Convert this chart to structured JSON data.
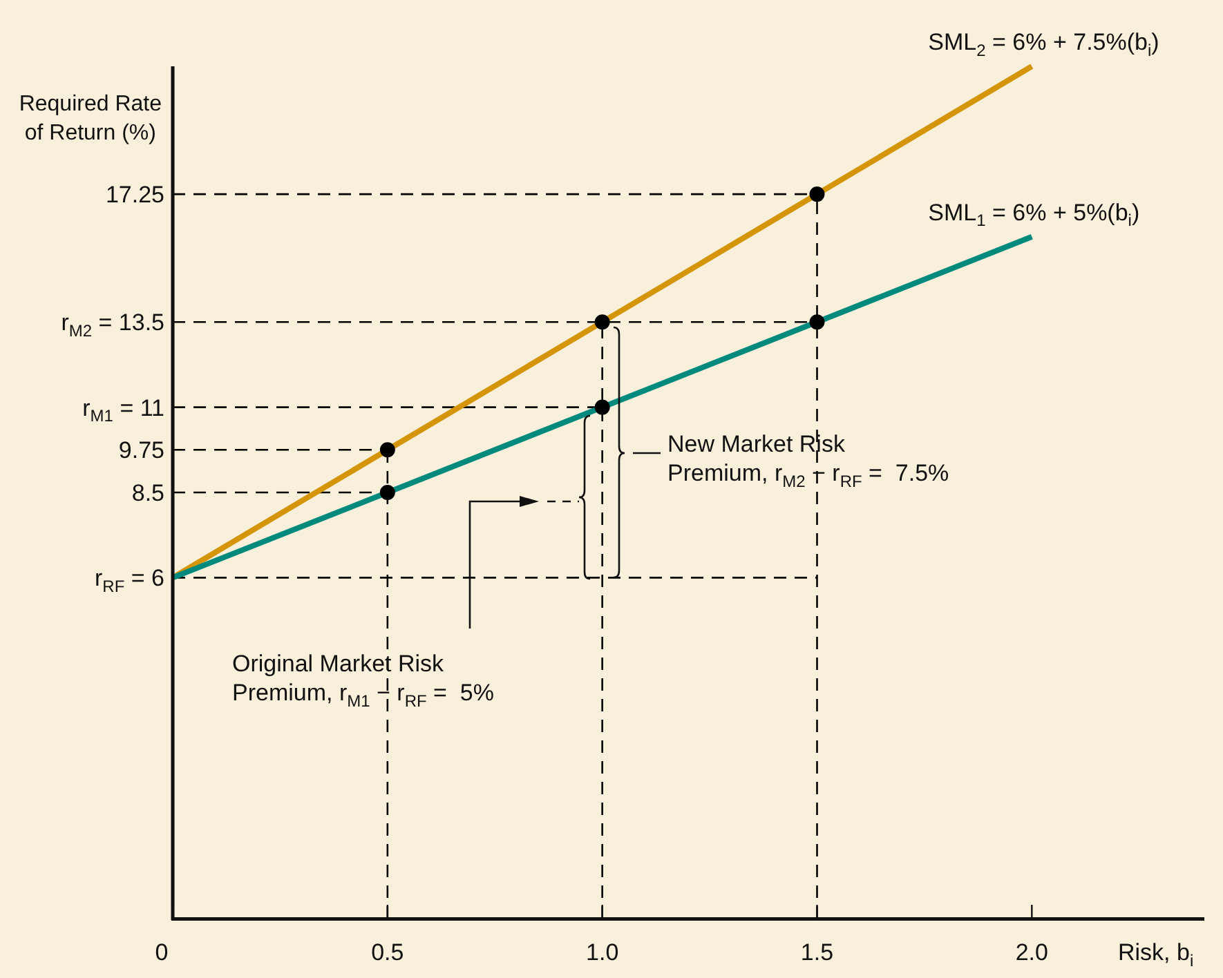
{
  "chart_data": {
    "type": "line",
    "xlabel": "Risk, b$_{i}$",
    "ylabel": "Required Rate\nof Return (%)",
    "xlim": [
      0,
      2.4
    ],
    "ylim": [
      -4,
      21
    ],
    "xticks": [
      0,
      0.5,
      {
        "value": 1,
        "label": "1.0"
      },
      1.5,
      {
        "value": 2,
        "label": "2.0"
      }
    ],
    "yticks": [
      {
        "value": 6,
        "label": "r$_{RF}$ = 6"
      },
      8.5,
      9.75,
      {
        "value": 11,
        "label": "r$_{M1}$ = 11"
      },
      {
        "value": 13.5,
        "label": "r$_{M2}$ = 13.5"
      },
      17.25
    ],
    "series": [
      {
        "name": "SML$_{1}$ = 6% + 5%(b$_{i}$)",
        "color": "#008a7e",
        "x": [
          0,
          2
        ],
        "values": [
          6,
          16
        ],
        "marker": "none"
      },
      {
        "name": "SML$_{2}$ = 6% + 7.5%(b$_{i}$)",
        "color": "#d4950a",
        "x": [
          0,
          2
        ],
        "values": [
          6,
          21
        ],
        "marker": "none"
      },
      {
        "type": "scatter",
        "color": "#000000",
        "x": [
          0.5,
          0.5,
          1,
          1,
          1.5,
          1.5
        ],
        "values": [
          8.5,
          9.75,
          11,
          13.5,
          13.5,
          17.25
        ],
        "marker": "circle"
      }
    ],
    "ref_lines": [
      {
        "axis": "y",
        "value": 6,
        "color": "#000000",
        "line_style": "dashed"
      },
      {
        "axis": "y",
        "value": 8.5,
        "color": "#000000",
        "line_style": "dashed"
      },
      {
        "axis": "y",
        "value": 9.75,
        "color": "#000000",
        "line_style": "dashed"
      },
      {
        "axis": "y",
        "value": 11,
        "color": "#000000",
        "line_style": "dashed"
      },
      {
        "axis": "y",
        "value": 13.5,
        "color": "#000000",
        "line_style": "dashed"
      },
      {
        "axis": "y",
        "value": 17.25,
        "color": "#000000",
        "line_style": "dashed"
      },
      {
        "axis": "x",
        "value": 0.5,
        "color": "#000000",
        "line_style": "dashed"
      },
      {
        "axis": "x",
        "value": 1,
        "color": "#000000",
        "line_style": "dashed"
      },
      {
        "axis": "x",
        "value": 1.5,
        "color": "#000000",
        "line_style": "dashed"
      }
    ],
    "annotations": [
      "Original Market Risk\nPremium, r$_{M1}$ − r$_{RF}$ =  5%",
      "New Market Risk\nPremium, r$_{M2}$ − r$_{RF}$ =  7.5%"
    ],
    "grid": false,
    "legend": false
  }
}
